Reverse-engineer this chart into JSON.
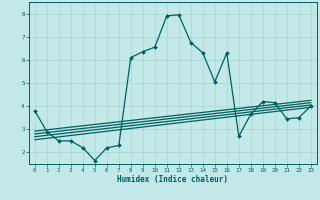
{
  "title": "",
  "xlabel": "Humidex (Indice chaleur)",
  "ylabel": "",
  "background_color": "#c2e8e8",
  "grid_color": "#b0d8d8",
  "line_color": "#006060",
  "xlim": [
    -0.5,
    23.5
  ],
  "ylim": [
    1.5,
    8.5
  ],
  "xticks": [
    0,
    1,
    2,
    3,
    4,
    5,
    6,
    7,
    8,
    9,
    10,
    11,
    12,
    13,
    14,
    15,
    16,
    17,
    18,
    19,
    20,
    21,
    22,
    23
  ],
  "yticks": [
    2,
    3,
    4,
    5,
    6,
    7,
    8
  ],
  "main_x": [
    0,
    1,
    2,
    3,
    4,
    5,
    6,
    7,
    8,
    9,
    10,
    11,
    12,
    13,
    14,
    15,
    16,
    17,
    18,
    19,
    20,
    21,
    22,
    23
  ],
  "main_y": [
    3.8,
    2.9,
    2.5,
    2.5,
    2.2,
    1.65,
    2.2,
    2.3,
    6.1,
    6.35,
    6.55,
    7.9,
    7.95,
    6.75,
    6.3,
    5.05,
    6.3,
    2.7,
    3.65,
    4.2,
    4.15,
    3.45,
    3.5,
    4.0
  ],
  "reg_lines": [
    {
      "x": [
        0,
        23
      ],
      "y": [
        2.55,
        3.95
      ]
    },
    {
      "x": [
        0,
        23
      ],
      "y": [
        2.68,
        4.05
      ]
    },
    {
      "x": [
        0,
        23
      ],
      "y": [
        2.8,
        4.15
      ]
    },
    {
      "x": [
        0,
        23
      ],
      "y": [
        2.92,
        4.25
      ]
    }
  ]
}
